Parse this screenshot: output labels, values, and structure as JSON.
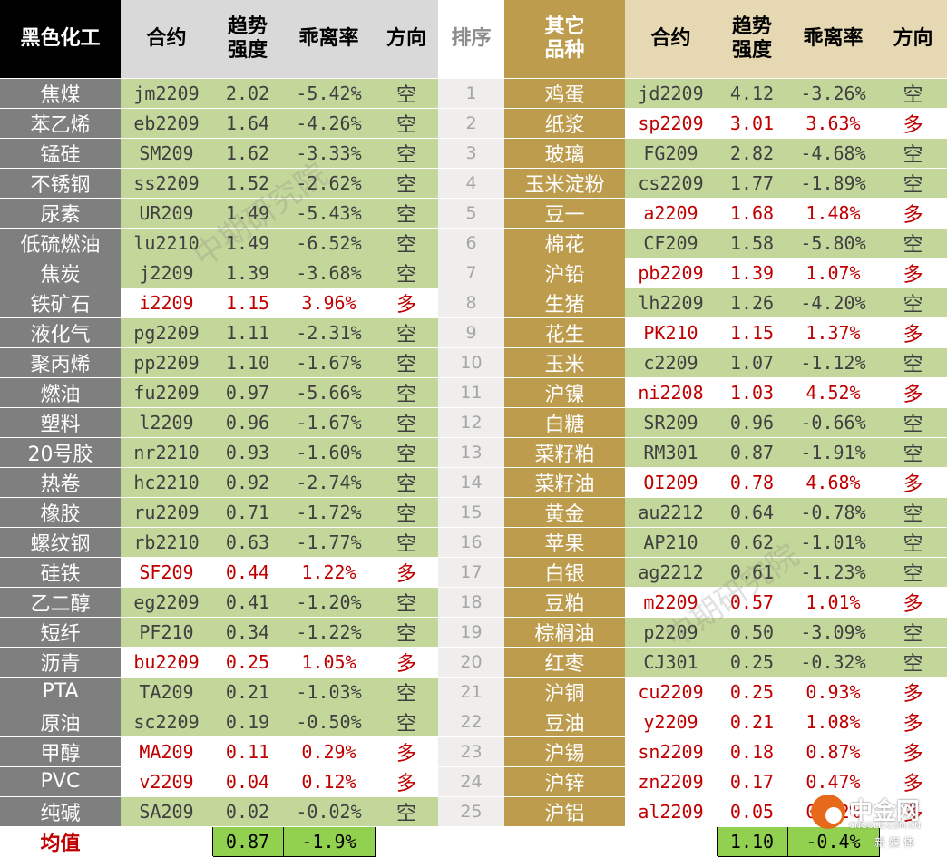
{
  "headers": {
    "left_name": "黑色化工",
    "contract": "合约",
    "strength": "趋势\n强度",
    "deviation": "乖离率",
    "direction": "方向",
    "rank": "排序",
    "right_name": "其它\n品种"
  },
  "rows": [
    {
      "rank": "1",
      "left": {
        "name": "焦煤",
        "contract": "jm2209",
        "strength": "2.02",
        "deviation": "-5.42%",
        "direction": "空"
      },
      "right": {
        "name": "鸡蛋",
        "contract": "jd2209",
        "strength": "4.12",
        "deviation": "-3.26%",
        "direction": "空"
      }
    },
    {
      "rank": "2",
      "left": {
        "name": "苯乙烯",
        "contract": "eb2209",
        "strength": "1.64",
        "deviation": "-4.26%",
        "direction": "空"
      },
      "right": {
        "name": "纸浆",
        "contract": "sp2209",
        "strength": "3.01",
        "deviation": "3.63%",
        "direction": "多"
      }
    },
    {
      "rank": "3",
      "left": {
        "name": "锰硅",
        "contract": "SM209",
        "strength": "1.62",
        "deviation": "-3.33%",
        "direction": "空"
      },
      "right": {
        "name": "玻璃",
        "contract": "FG209",
        "strength": "2.82",
        "deviation": "-4.68%",
        "direction": "空"
      }
    },
    {
      "rank": "4",
      "left": {
        "name": "不锈钢",
        "contract": "ss2209",
        "strength": "1.52",
        "deviation": "-2.62%",
        "direction": "空"
      },
      "right": {
        "name": "玉米淀粉",
        "contract": "cs2209",
        "strength": "1.77",
        "deviation": "-1.89%",
        "direction": "空"
      }
    },
    {
      "rank": "5",
      "left": {
        "name": "尿素",
        "contract": "UR209",
        "strength": "1.49",
        "deviation": "-5.43%",
        "direction": "空"
      },
      "right": {
        "name": "豆一",
        "contract": "a2209",
        "strength": "1.68",
        "deviation": "1.48%",
        "direction": "多"
      }
    },
    {
      "rank": "6",
      "left": {
        "name": "低硫燃油",
        "contract": "lu2210",
        "strength": "1.49",
        "deviation": "-6.52%",
        "direction": "空"
      },
      "right": {
        "name": "棉花",
        "contract": "CF209",
        "strength": "1.58",
        "deviation": "-5.80%",
        "direction": "空"
      }
    },
    {
      "rank": "7",
      "left": {
        "name": "焦炭",
        "contract": "j2209",
        "strength": "1.39",
        "deviation": "-3.68%",
        "direction": "空"
      },
      "right": {
        "name": "沪铅",
        "contract": "pb2209",
        "strength": "1.39",
        "deviation": "1.07%",
        "direction": "多"
      }
    },
    {
      "rank": "8",
      "left": {
        "name": "铁矿石",
        "contract": "i2209",
        "strength": "1.15",
        "deviation": "3.96%",
        "direction": "多"
      },
      "right": {
        "name": "生猪",
        "contract": "lh2209",
        "strength": "1.26",
        "deviation": "-4.20%",
        "direction": "空"
      }
    },
    {
      "rank": "9",
      "left": {
        "name": "液化气",
        "contract": "pg2209",
        "strength": "1.11",
        "deviation": "-2.31%",
        "direction": "空"
      },
      "right": {
        "name": "花生",
        "contract": "PK210",
        "strength": "1.15",
        "deviation": "1.37%",
        "direction": "多"
      }
    },
    {
      "rank": "10",
      "left": {
        "name": "聚丙烯",
        "contract": "pp2209",
        "strength": "1.10",
        "deviation": "-1.67%",
        "direction": "空"
      },
      "right": {
        "name": "玉米",
        "contract": "c2209",
        "strength": "1.07",
        "deviation": "-1.12%",
        "direction": "空"
      }
    },
    {
      "rank": "11",
      "left": {
        "name": "燃油",
        "contract": "fu2209",
        "strength": "0.97",
        "deviation": "-5.66%",
        "direction": "空"
      },
      "right": {
        "name": "沪镍",
        "contract": "ni2208",
        "strength": "1.03",
        "deviation": "4.52%",
        "direction": "多"
      }
    },
    {
      "rank": "12",
      "left": {
        "name": "塑料",
        "contract": "l2209",
        "strength": "0.96",
        "deviation": "-1.67%",
        "direction": "空"
      },
      "right": {
        "name": "白糖",
        "contract": "SR209",
        "strength": "0.96",
        "deviation": "-0.66%",
        "direction": "空"
      }
    },
    {
      "rank": "13",
      "left": {
        "name": "20号胶",
        "contract": "nr2210",
        "strength": "0.93",
        "deviation": "-1.60%",
        "direction": "空"
      },
      "right": {
        "name": "菜籽粕",
        "contract": "RM301",
        "strength": "0.87",
        "deviation": "-1.91%",
        "direction": "空"
      }
    },
    {
      "rank": "14",
      "left": {
        "name": "热卷",
        "contract": "hc2210",
        "strength": "0.92",
        "deviation": "-2.74%",
        "direction": "空"
      },
      "right": {
        "name": "菜籽油",
        "contract": "OI209",
        "strength": "0.78",
        "deviation": "4.68%",
        "direction": "多"
      }
    },
    {
      "rank": "15",
      "left": {
        "name": "橡胶",
        "contract": "ru2209",
        "strength": "0.71",
        "deviation": "-1.72%",
        "direction": "空"
      },
      "right": {
        "name": "黄金",
        "contract": "au2212",
        "strength": "0.64",
        "deviation": "-0.78%",
        "direction": "空"
      }
    },
    {
      "rank": "16",
      "left": {
        "name": "螺纹钢",
        "contract": "rb2210",
        "strength": "0.63",
        "deviation": "-1.77%",
        "direction": "空"
      },
      "right": {
        "name": "苹果",
        "contract": "AP210",
        "strength": "0.62",
        "deviation": "-1.01%",
        "direction": "空"
      }
    },
    {
      "rank": "17",
      "left": {
        "name": "硅铁",
        "contract": "SF209",
        "strength": "0.44",
        "deviation": "1.22%",
        "direction": "多"
      },
      "right": {
        "name": "白银",
        "contract": "ag2212",
        "strength": "0.61",
        "deviation": "-1.23%",
        "direction": "空"
      }
    },
    {
      "rank": "18",
      "left": {
        "name": "乙二醇",
        "contract": "eg2209",
        "strength": "0.41",
        "deviation": "-1.20%",
        "direction": "空"
      },
      "right": {
        "name": "豆粕",
        "contract": "m2209",
        "strength": "0.57",
        "deviation": "1.01%",
        "direction": "多"
      }
    },
    {
      "rank": "19",
      "left": {
        "name": "短纤",
        "contract": "PF210",
        "strength": "0.34",
        "deviation": "-1.22%",
        "direction": "空"
      },
      "right": {
        "name": "棕榈油",
        "contract": "p2209",
        "strength": "0.50",
        "deviation": "-3.09%",
        "direction": "空"
      }
    },
    {
      "rank": "20",
      "left": {
        "name": "沥青",
        "contract": "bu2209",
        "strength": "0.25",
        "deviation": "1.05%",
        "direction": "多"
      },
      "right": {
        "name": "红枣",
        "contract": "CJ301",
        "strength": "0.25",
        "deviation": "-0.32%",
        "direction": "空"
      }
    },
    {
      "rank": "21",
      "left": {
        "name": "PTA",
        "contract": "TA209",
        "strength": "0.21",
        "deviation": "-1.03%",
        "direction": "空"
      },
      "right": {
        "name": "沪铜",
        "contract": "cu2209",
        "strength": "0.25",
        "deviation": "0.93%",
        "direction": "多"
      }
    },
    {
      "rank": "22",
      "left": {
        "name": "原油",
        "contract": "sc2209",
        "strength": "0.19",
        "deviation": "-0.50%",
        "direction": "空"
      },
      "right": {
        "name": "豆油",
        "contract": "y2209",
        "strength": "0.21",
        "deviation": "1.08%",
        "direction": "多"
      }
    },
    {
      "rank": "23",
      "left": {
        "name": "甲醇",
        "contract": "MA209",
        "strength": "0.11",
        "deviation": "0.29%",
        "direction": "多"
      },
      "right": {
        "name": "沪锡",
        "contract": "sn2209",
        "strength": "0.18",
        "deviation": "0.87%",
        "direction": "多"
      }
    },
    {
      "rank": "24",
      "left": {
        "name": "PVC",
        "contract": "v2209",
        "strength": "0.04",
        "deviation": "0.12%",
        "direction": "多"
      },
      "right": {
        "name": "沪锌",
        "contract": "zn2209",
        "strength": "0.17",
        "deviation": "0.47%",
        "direction": "多"
      }
    },
    {
      "rank": "25",
      "left": {
        "name": "纯碱",
        "contract": "SA209",
        "strength": "0.02",
        "deviation": "-0.02%",
        "direction": "空"
      },
      "right": {
        "name": "沪铝",
        "contract": "al2209",
        "strength": "0.05",
        "deviation": "0.02%",
        "direction": "多"
      }
    }
  ],
  "average": {
    "label": "均值",
    "left_strength": "0.87",
    "left_deviation": "-1.9%",
    "right_strength": "1.10",
    "right_deviation": "-0.4%"
  },
  "watermark": "中期研究院",
  "logo": {
    "title": "中金网",
    "url": "CNGOLD.COM.CN",
    "sub": "新媒体"
  },
  "colors": {
    "short_bg": "#c4d79b",
    "long_text": "#c00000",
    "left_name_bg": "#7f7f7f",
    "right_name_bg": "#bd9c4d",
    "avg_bg": "#92d050"
  }
}
